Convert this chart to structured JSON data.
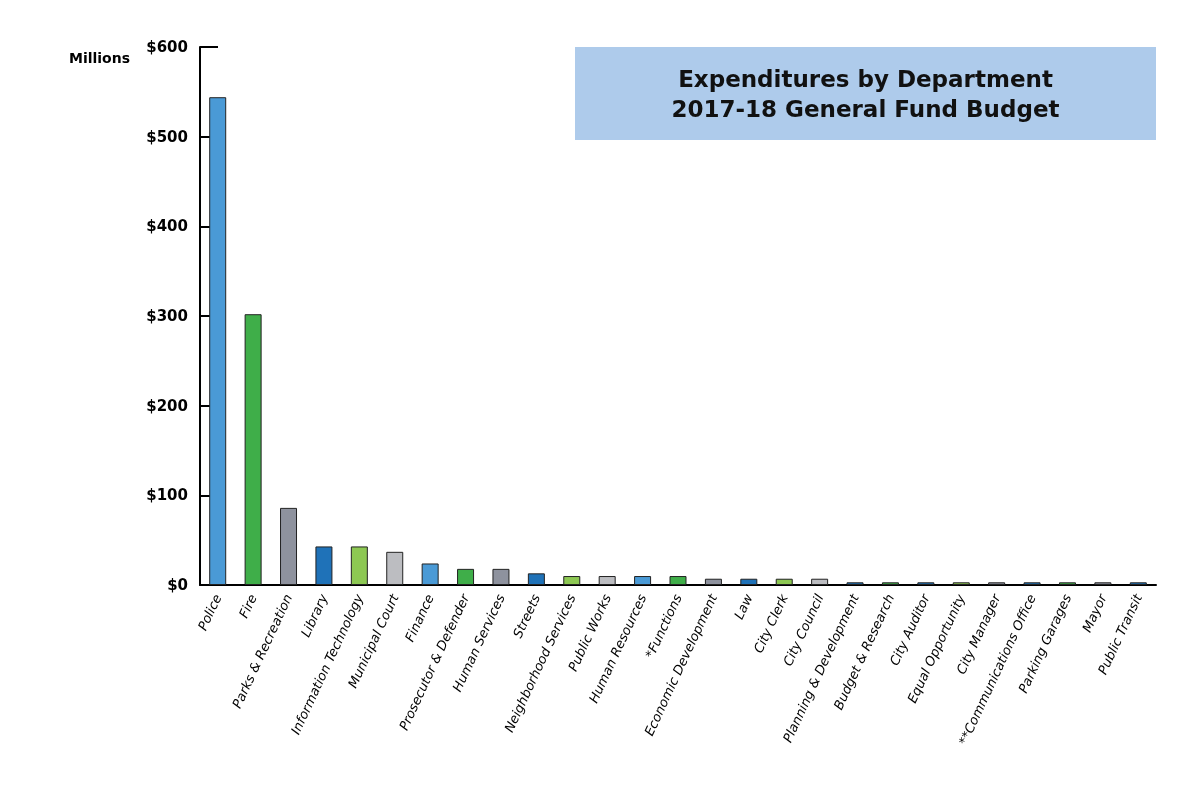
{
  "chart_data": {
    "type": "bar",
    "title": "Expenditures by Department\n2017-18 General Fund Budget",
    "ylabel": "Millions",
    "categories": [
      "Police",
      "Fire",
      "Parks & Recreation",
      "Library",
      "Information Technology",
      "Municipal Court",
      "Finance",
      "Prosecutor & Defender",
      "Human Services",
      "Streets",
      "Neighborhood Services",
      "Public Works",
      "Human Resources",
      "*Functions",
      "Economic Development",
      "Law",
      "City Clerk",
      "City Council",
      "Planning & Development",
      "Budget & Research",
      "City Auditor",
      "Equal Opportunity",
      "City Manager",
      "**Communications Office",
      "Parking Garages",
      "Mayor",
      "Public Transit"
    ],
    "values": [
      544,
      302,
      86,
      43,
      43,
      37,
      24,
      18,
      18,
      13,
      10,
      10,
      10,
      10,
      7,
      7,
      7,
      7,
      3,
      3,
      3,
      3,
      3,
      3,
      3,
      3,
      3
    ],
    "colors": [
      "#4a9ad6",
      "#3fae49",
      "#8e929e",
      "#1f72b8",
      "#8dc853",
      "#bcbdc1",
      "#4a9ad6",
      "#3fae49",
      "#8e929e",
      "#1f72b8",
      "#8dc853",
      "#bcbdc1",
      "#4a9ad6",
      "#3fae49",
      "#8e929e",
      "#1f72b8",
      "#8dc853",
      "#bcbdc1",
      "#1f72b8",
      "#3fae49",
      "#1f72b8",
      "#8dc853",
      "#8e929e",
      "#1f72b8",
      "#3fae49",
      "#8e929e",
      "#1f72b8"
    ],
    "ylim": [
      0,
      600
    ],
    "yticks": [
      {
        "value": 0,
        "label": "$0"
      },
      {
        "value": 100,
        "label": "$100"
      },
      {
        "value": 200,
        "label": "$200"
      },
      {
        "value": 300,
        "label": "$300"
      },
      {
        "value": 400,
        "label": "$400"
      },
      {
        "value": 500,
        "label": "$500"
      },
      {
        "value": 600,
        "label": "$600"
      }
    ],
    "grid": false
  }
}
